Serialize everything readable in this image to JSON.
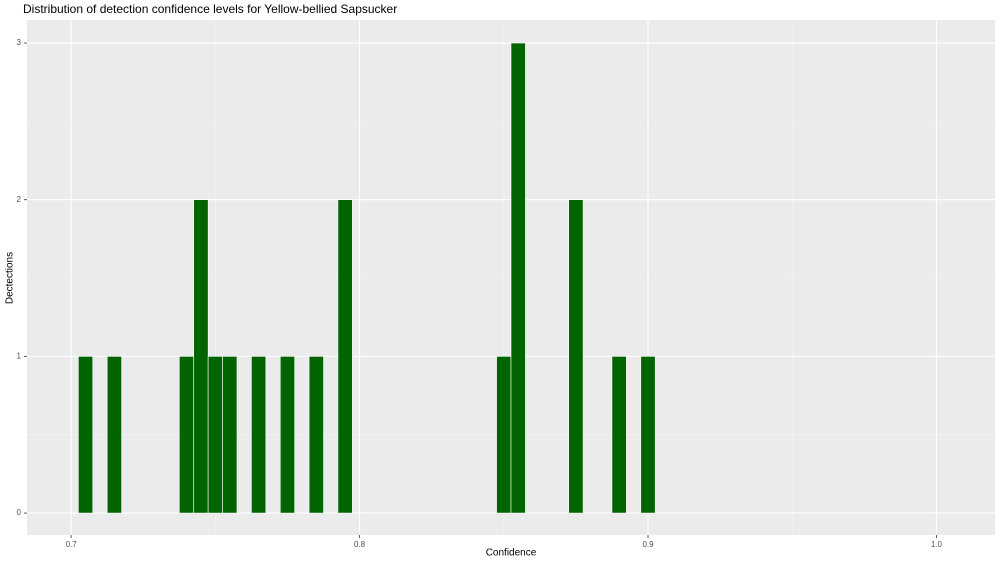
{
  "chart_data": {
    "type": "histogram",
    "title": "Distribution of detection confidence levels for Yellow-bellied Sapsucker",
    "xlabel": "Confidence",
    "ylabel": "Dectections",
    "bins": [
      0.7025,
      0.7075,
      0.7125,
      0.7175,
      0.7225,
      0.7275,
      0.7325,
      0.7375,
      0.7425,
      0.7475,
      0.7525,
      0.7575,
      0.7625,
      0.7675,
      0.7725,
      0.7775,
      0.7825,
      0.7875,
      0.7925,
      0.7975,
      0.8025,
      0.8075,
      0.8125,
      0.8175,
      0.8225,
      0.8275,
      0.8325,
      0.8375,
      0.8425,
      0.8475,
      0.8525,
      0.8575,
      0.8625,
      0.8675,
      0.8725,
      0.8775,
      0.8825,
      0.8875,
      0.8925,
      0.8975,
      0.9025
    ],
    "values": [
      1,
      0,
      1,
      0,
      0,
      0,
      0,
      1,
      2,
      1,
      1,
      0,
      1,
      0,
      1,
      0,
      1,
      0,
      2,
      0,
      0,
      0,
      0,
      0,
      0,
      0,
      0,
      0,
      0,
      1,
      3,
      0,
      0,
      0,
      2,
      0,
      0,
      1,
      0,
      1
    ],
    "color": "#006400",
    "xlim": [
      0.6847,
      1.0203
    ],
    "xticks": [
      0.7,
      0.8,
      0.9,
      {
        "value": 1,
        "label": "1.0"
      }
    ],
    "ylim": [
      -0.14,
      3.147
    ],
    "yticks": [
      0,
      1,
      2,
      3
    ],
    "grid": true
  }
}
